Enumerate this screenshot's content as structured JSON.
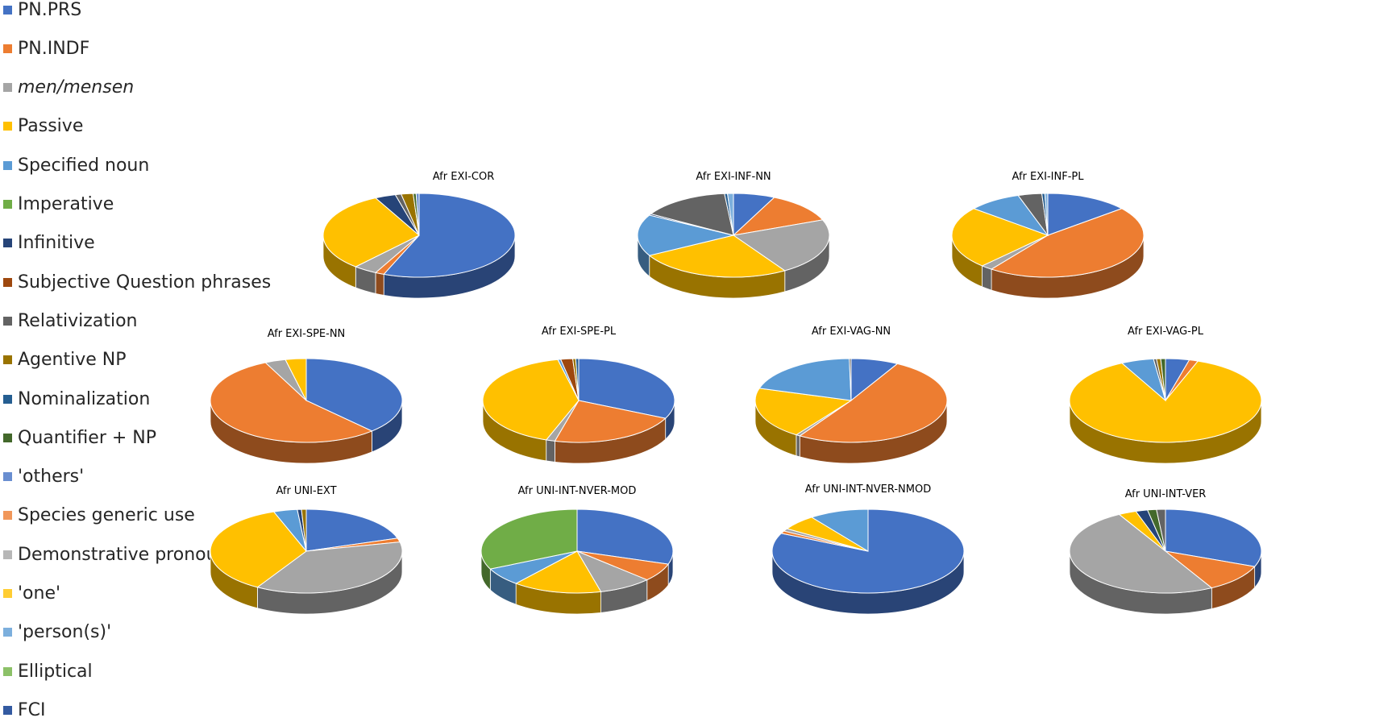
{
  "legend": [
    {
      "name": "PN.PRS",
      "color": "#4472C4"
    },
    {
      "name": "PN.INDF",
      "color": "#ED7D31"
    },
    {
      "name": "men/mensen",
      "color": "#A5A5A5",
      "italic": true
    },
    {
      "name": "Passive",
      "color": "#FFC000"
    },
    {
      "name": "Specified noun",
      "color": "#5B9BD5"
    },
    {
      "name": "Imperative",
      "color": "#70AD47"
    },
    {
      "name": "Infinitive",
      "color": "#264478"
    },
    {
      "name": "Subjective Question phrases",
      "color": "#9E480E"
    },
    {
      "name": "Relativization",
      "color": "#636363"
    },
    {
      "name": "Agentive NP",
      "color": "#997300"
    },
    {
      "name": "Nominalization",
      "color": "#255E91"
    },
    {
      "name": "Quantifier + NP",
      "color": "#43682B"
    },
    {
      "name": "'others'",
      "color": "#698ED0"
    },
    {
      "name": "Species generic use",
      "color": "#F1975A"
    },
    {
      "name": "Demonstrative pronoun",
      "color": "#B7B7B7"
    },
    {
      "name": "'one'",
      "color": "#FFCD33"
    },
    {
      "name": "'person(s)'",
      "color": "#7CAFDD"
    },
    {
      "name": "Elliptical",
      "color": "#8CC168"
    },
    {
      "name": "FCI",
      "color": "#335AA1"
    }
  ],
  "chart_data": [
    {
      "type": "pie",
      "title": "Afr EXI-COR",
      "series": [
        {
          "category": "PN.PRS",
          "value": 56
        },
        {
          "category": "PN.INDF",
          "value": 1.5
        },
        {
          "category": "men/mensen",
          "value": 4
        },
        {
          "category": "Passive",
          "value": 31
        },
        {
          "category": "Infinitive",
          "value": 3.5
        },
        {
          "category": "Relativization",
          "value": 1
        },
        {
          "category": "Agentive NP",
          "value": 2
        },
        {
          "category": "Quantifier + NP",
          "value": 0.5
        },
        {
          "category": "'others'",
          "value": 0.5
        }
      ]
    },
    {
      "type": "pie",
      "title": "Afr EXI-INF-NN",
      "series": [
        {
          "category": "PN.PRS",
          "value": 7
        },
        {
          "category": "PN.INDF",
          "value": 12
        },
        {
          "category": "men/mensen",
          "value": 22
        },
        {
          "category": "Passive",
          "value": 26
        },
        {
          "category": "Specified noun",
          "value": 16
        },
        {
          "category": "Infinitive",
          "value": 0.5
        },
        {
          "category": "Relativization",
          "value": 15
        },
        {
          "category": "Nominalization",
          "value": 0.5
        },
        {
          "category": "'person(s)'",
          "value": 1
        }
      ]
    },
    {
      "type": "pie",
      "title": "Afr EXI-INF-PL",
      "series": [
        {
          "category": "PN.PRS",
          "value": 14
        },
        {
          "category": "PN.INDF",
          "value": 46
        },
        {
          "category": "men/mensen",
          "value": 2
        },
        {
          "category": "Passive",
          "value": 24
        },
        {
          "category": "Specified noun",
          "value": 9
        },
        {
          "category": "Relativization",
          "value": 4
        },
        {
          "category": "Nominalization",
          "value": 0.5
        },
        {
          "category": "'person(s)'",
          "value": 0.5
        }
      ]
    },
    {
      "type": "pie",
      "title": "Afr EXI-SPE-NN",
      "series": [
        {
          "category": "PN.PRS",
          "value": 38
        },
        {
          "category": "PN.INDF",
          "value": 55
        },
        {
          "category": "men/mensen",
          "value": 3.5
        },
        {
          "category": "Passive",
          "value": 3.5
        }
      ]
    },
    {
      "type": "pie",
      "title": "Afr EXI-SPE-PL",
      "series": [
        {
          "category": "PN.PRS",
          "value": 32
        },
        {
          "category": "PN.INDF",
          "value": 22
        },
        {
          "category": "men/mensen",
          "value": 1.5
        },
        {
          "category": "Passive",
          "value": 41
        },
        {
          "category": "Specified noun",
          "value": 0.5
        },
        {
          "category": "Subjective Question phrases",
          "value": 2
        },
        {
          "category": "Agentive NP",
          "value": 0.5
        },
        {
          "category": "Nominalization",
          "value": 0.5
        }
      ]
    },
    {
      "type": "pie",
      "title": "Afr EXI-VAG-NN",
      "series": [
        {
          "category": "PN.PRS",
          "value": 8
        },
        {
          "category": "PN.INDF",
          "value": 51
        },
        {
          "category": "men/mensen",
          "value": 0.7
        },
        {
          "category": "Passive",
          "value": 20
        },
        {
          "category": "Specified noun",
          "value": 20
        },
        {
          "category": "Relativization",
          "value": 0.3
        }
      ]
    },
    {
      "type": "pie",
      "title": "Afr EXI-VAG-PL",
      "series": [
        {
          "category": "PN.PRS",
          "value": 4
        },
        {
          "category": "PN.INDF",
          "value": 1.5
        },
        {
          "category": "Passive",
          "value": 87
        },
        {
          "category": "Specified noun",
          "value": 5.5
        },
        {
          "category": "Relativization",
          "value": 0.5
        },
        {
          "category": "Agentive NP",
          "value": 0.7
        },
        {
          "category": "Quantifier + NP",
          "value": 0.8
        }
      ]
    },
    {
      "type": "pie",
      "title": "Afr UNI-EXT",
      "series": [
        {
          "category": "PN.PRS",
          "value": 20
        },
        {
          "category": "PN.INDF",
          "value": 1.5
        },
        {
          "category": "men/mensen",
          "value": 37
        },
        {
          "category": "Passive",
          "value": 36
        },
        {
          "category": "Specified noun",
          "value": 4
        },
        {
          "category": "Infinitive",
          "value": 0.7
        },
        {
          "category": "Agentive NP",
          "value": 0.8
        }
      ]
    },
    {
      "type": "pie",
      "title": "Afr UNI-INT-NVER-MOD",
      "series": [
        {
          "category": "PN.PRS",
          "value": 30
        },
        {
          "category": "PN.INDF",
          "value": 7
        },
        {
          "category": "men/mensen",
          "value": 9
        },
        {
          "category": "Passive",
          "value": 15
        },
        {
          "category": "Specified noun",
          "value": 7
        },
        {
          "category": "Imperative",
          "value": 32
        }
      ]
    },
    {
      "type": "pie",
      "title": "Afr UNI-INT-NVER-NMOD",
      "series": [
        {
          "category": "PN.PRS",
          "value": 82
        },
        {
          "category": "PN.INDF",
          "value": 1
        },
        {
          "category": "men/mensen",
          "value": 1
        },
        {
          "category": "Passive",
          "value": 6
        },
        {
          "category": "Specified noun",
          "value": 10
        }
      ]
    },
    {
      "type": "pie",
      "title": "Afr UNI-INT-VER",
      "series": [
        {
          "category": "PN.PRS",
          "value": 31
        },
        {
          "category": "PN.INDF",
          "value": 11
        },
        {
          "category": "men/mensen",
          "value": 50
        },
        {
          "category": "Passive",
          "value": 3
        },
        {
          "category": "Infinitive",
          "value": 2
        },
        {
          "category": "Quantifier + NP",
          "value": 1.5
        },
        {
          "category": "Relativization",
          "value": 1.5
        }
      ]
    }
  ]
}
